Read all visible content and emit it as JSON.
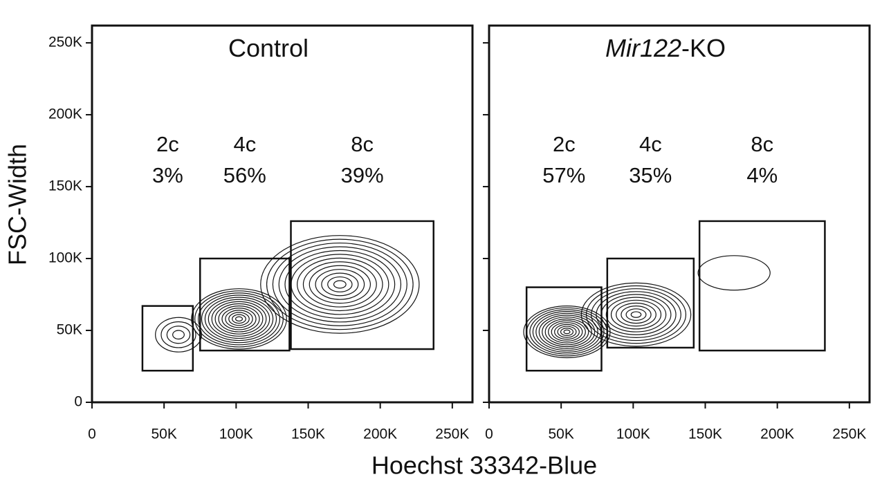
{
  "chart_data": {
    "type": "contour",
    "xlabel": "Hoechst 33342-Blue",
    "ylabel": "FSC-Width",
    "xlim": [
      0,
      264000
    ],
    "ylim": [
      0,
      262000
    ],
    "xticks": [
      0,
      {
        "value": 50000,
        "label": "50K"
      },
      {
        "value": 100000,
        "label": "100K"
      },
      {
        "value": 150000,
        "label": "150K"
      },
      {
        "value": 200000,
        "label": "200K"
      },
      {
        "value": 250000,
        "label": "250K"
      }
    ],
    "yticks": [
      0,
      {
        "value": 50000,
        "label": "50K"
      },
      {
        "value": 100000,
        "label": "100K"
      },
      {
        "value": 150000,
        "label": "150K"
      },
      {
        "value": 200000,
        "label": "200K"
      },
      {
        "value": 250000,
        "label": "250K"
      }
    ],
    "panels": [
      {
        "title": [
          {
            "text": "Control",
            "style": "normal"
          }
        ],
        "gates": [
          {
            "name": "2c",
            "value": 3,
            "value_label": "3%",
            "xrange": [
              35000,
              70000
            ],
            "yrange": [
              22000,
              67000
            ]
          },
          {
            "name": "4c",
            "value": 56,
            "value_label": "56%",
            "xrange": [
              75000,
              137000
            ],
            "yrange": [
              36000,
              100000
            ]
          },
          {
            "name": "8c",
            "value": 39,
            "value_label": "39%",
            "xrange": [
              138000,
              237000
            ],
            "yrange": [
              37000,
              126000
            ]
          }
        ],
        "clusters": [
          {
            "x": 60000,
            "y": 47000,
            "sx": 16000,
            "sy": 12000,
            "levels": 4
          },
          {
            "x": 102000,
            "y": 58000,
            "sx": 33000,
            "sy": 21000,
            "levels": 14
          },
          {
            "x": 172000,
            "y": 82000,
            "sx": 55000,
            "sy": 34000,
            "levels": 13
          }
        ]
      },
      {
        "title": [
          {
            "text": "Mir122",
            "style": "italic"
          },
          {
            "text": "-KO",
            "style": "normal"
          }
        ],
        "gates": [
          {
            "name": "2c",
            "value": 57,
            "value_label": "57%",
            "xrange": [
              26000,
              78000
            ],
            "yrange": [
              22000,
              80000
            ]
          },
          {
            "name": "4c",
            "value": 35,
            "value_label": "35%",
            "xrange": [
              82000,
              142000
            ],
            "yrange": [
              38000,
              100000
            ]
          },
          {
            "name": "8c",
            "value": 4,
            "value_label": "4%",
            "xrange": [
              146000,
              233000
            ],
            "yrange": [
              36000,
              126000
            ]
          }
        ],
        "clusters": [
          {
            "x": 54000,
            "y": 49000,
            "sx": 30000,
            "sy": 18000,
            "levels": 14
          },
          {
            "x": 102000,
            "y": 61000,
            "sx": 38000,
            "sy": 22000,
            "levels": 11
          },
          {
            "x": 170000,
            "y": 90000,
            "sx": 25000,
            "sy": 12000,
            "levels": 1
          }
        ]
      }
    ]
  }
}
